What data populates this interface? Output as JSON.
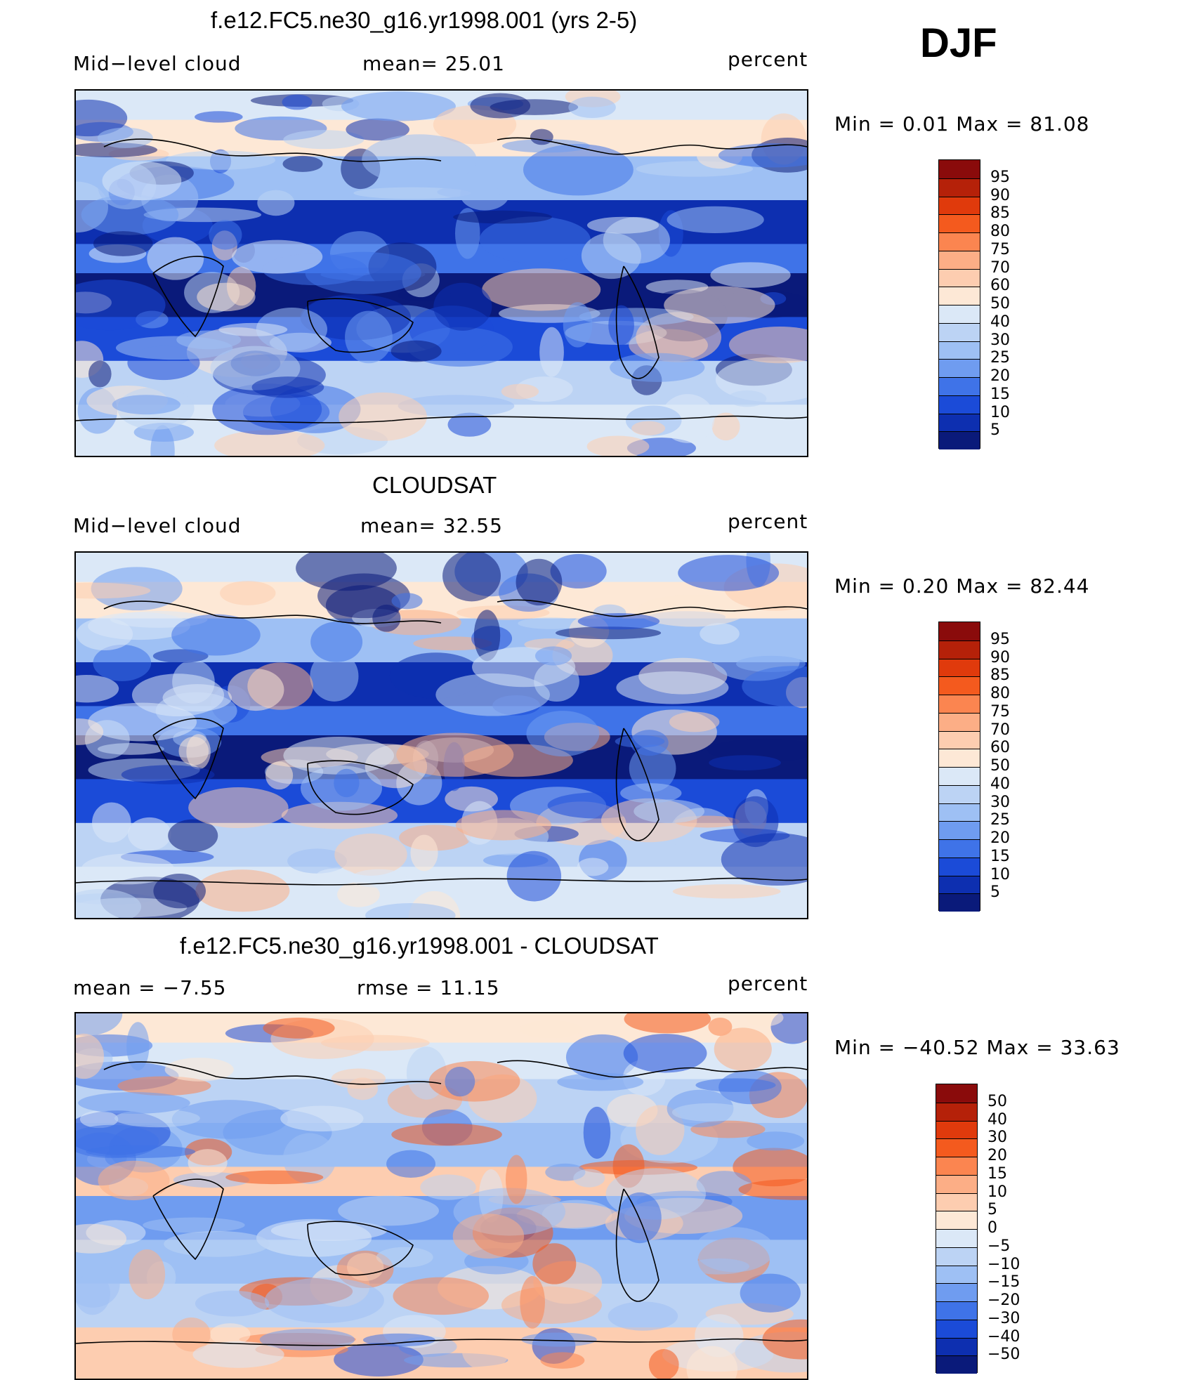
{
  "season": "DJF",
  "panels": [
    {
      "title": "f.e12.FC5.ne30_g16.yr1998.001 (yrs 2-5)",
      "left_label": "Mid−level cloud",
      "mid_label": "mean=   25.01",
      "right_label": "percent",
      "minmax": "Min  =     0.01  Max  =    81.08",
      "colorbar": {
        "levels": [
          "95",
          "90",
          "85",
          "80",
          "75",
          "70",
          "60",
          "50",
          "40",
          "30",
          "25",
          "20",
          "15",
          "10",
          "5"
        ],
        "colors": [
          "#8a0b0b",
          "#b52109",
          "#e03a0c",
          "#f45a1e",
          "#fb8550",
          "#fcae86",
          "#fdcdb0",
          "#fde8d6",
          "#dbe8f7",
          "#bcd3f4",
          "#9ec0f4",
          "#6f9cf0",
          "#3f73e8",
          "#1b4bd8",
          "#0d2fb0",
          "#0a1a7a"
        ]
      },
      "map_palette": [
        "#0a1a7a",
        "#0d2fb0",
        "#1b4bd8",
        "#3f73e8",
        "#6f9cf0",
        "#9ec0f4",
        "#bcd3f4",
        "#dbe8f7",
        "#fde8d6",
        "#fdcdb0"
      ]
    },
    {
      "title": "CLOUDSAT",
      "left_label": "Mid−level cloud",
      "mid_label": "mean=   32.55",
      "right_label": "percent",
      "minmax": "Min  =     0.20  Max  =    82.44",
      "colorbar": {
        "levels": [
          "95",
          "90",
          "85",
          "80",
          "75",
          "70",
          "60",
          "50",
          "40",
          "30",
          "25",
          "20",
          "15",
          "10",
          "5"
        ],
        "colors": [
          "#8a0b0b",
          "#b52109",
          "#e03a0c",
          "#f45a1e",
          "#fb8550",
          "#fcae86",
          "#fdcdb0",
          "#fde8d6",
          "#dbe8f7",
          "#bcd3f4",
          "#9ec0f4",
          "#6f9cf0",
          "#3f73e8",
          "#1b4bd8",
          "#0d2fb0",
          "#0a1a7a"
        ]
      },
      "map_palette": [
        "#0a1a7a",
        "#0d2fb0",
        "#1b4bd8",
        "#3f73e8",
        "#6f9cf0",
        "#9ec0f4",
        "#bcd3f4",
        "#dbe8f7",
        "#fde8d6",
        "#fdcdb0",
        "#fcae86"
      ]
    },
    {
      "title": "f.e12.FC5.ne30_g16.yr1998.001 - CLOUDSAT",
      "left_label": "mean  =    −7.55",
      "mid_label": "rmse  =    11.15",
      "right_label": "percent",
      "minmax": "Min  =  −40.52  Max  =    33.63",
      "colorbar": {
        "levels": [
          "50",
          "40",
          "30",
          "20",
          "15",
          "10",
          "5",
          "0",
          "−5",
          "−10",
          "−15",
          "−20",
          "−30",
          "−40",
          "−50"
        ],
        "colors": [
          "#8a0b0b",
          "#b52109",
          "#e03a0c",
          "#f45a1e",
          "#fb8550",
          "#fcae86",
          "#fdcdb0",
          "#fde8d6",
          "#dbe8f7",
          "#bcd3f4",
          "#9ec0f4",
          "#6f9cf0",
          "#3f73e8",
          "#1b4bd8",
          "#0d2fb0",
          "#0a1a7a"
        ]
      },
      "map_palette": [
        "#1b4bd8",
        "#3f73e8",
        "#6f9cf0",
        "#9ec0f4",
        "#bcd3f4",
        "#dbe8f7",
        "#fde8d6",
        "#fdcdb0",
        "#fcae86",
        "#fb8550",
        "#f45a1e"
      ]
    }
  ]
}
